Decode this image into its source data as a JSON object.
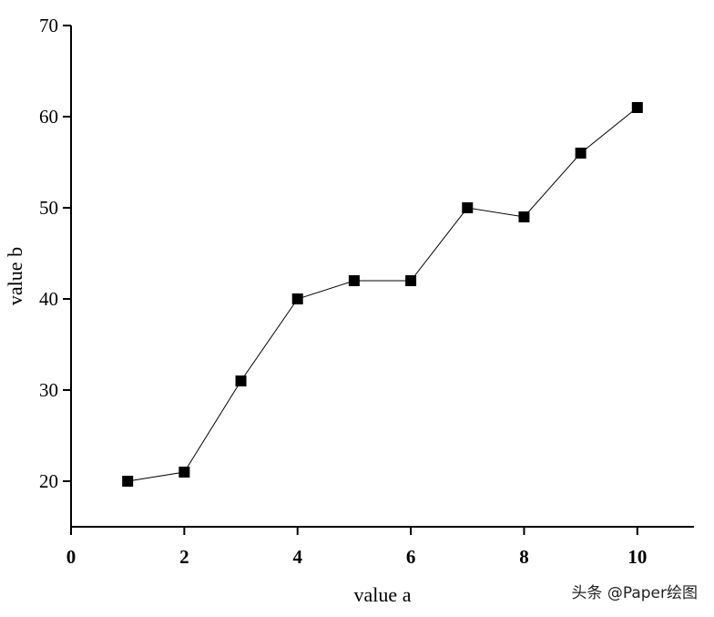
{
  "chart_data": {
    "type": "line",
    "title": "",
    "xlabel": "value a",
    "ylabel": "value b",
    "xlim": [
      0,
      11
    ],
    "ylim": [
      15,
      70
    ],
    "xticks": [
      0,
      2,
      4,
      6,
      8,
      10
    ],
    "yticks": [
      20,
      30,
      40,
      50,
      60,
      70
    ],
    "grid": false,
    "marker": "square",
    "color": "#000000",
    "series": [
      {
        "name": "value b",
        "x": [
          1,
          2,
          3,
          4,
          5,
          6,
          7,
          8,
          9,
          10
        ],
        "y": [
          20,
          21,
          31,
          40,
          42,
          42,
          50,
          49,
          56,
          61
        ]
      }
    ]
  },
  "watermark": "头条 @Paper绘图"
}
